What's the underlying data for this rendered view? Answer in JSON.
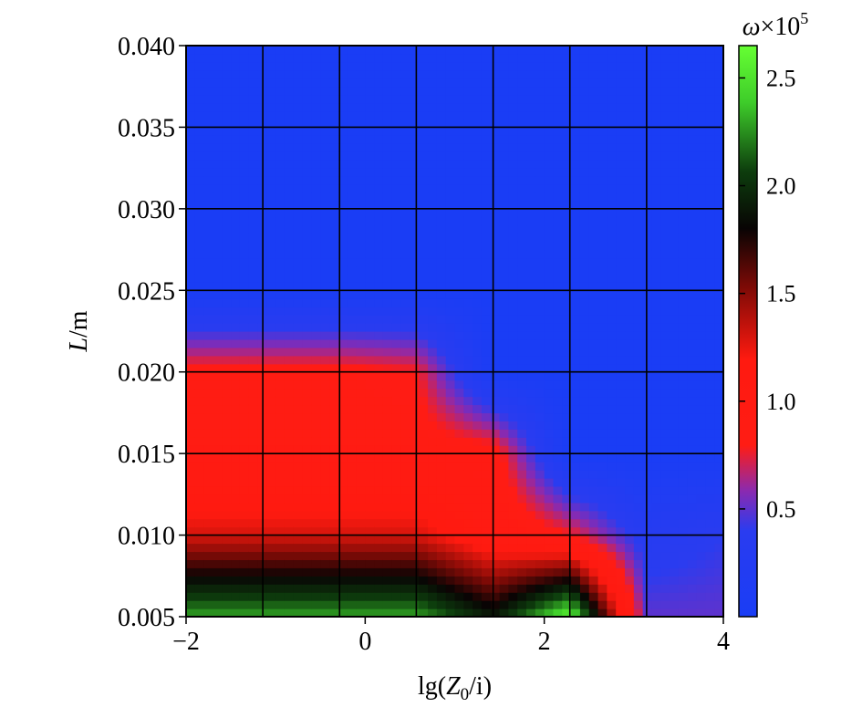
{
  "chart_data": {
    "type": "heatmap",
    "title": "",
    "xlabel_parts": {
      "pre": "lg(",
      "var": "Z",
      "sub": "0",
      "post": "/i)"
    },
    "ylabel_parts": {
      "var": "L",
      "post": "/m"
    },
    "xlim": [
      -2,
      4
    ],
    "ylim": [
      0.005,
      0.04
    ],
    "x_ticks": [
      -2,
      0,
      2,
      4
    ],
    "x_tick_labels": [
      "−2",
      "0",
      "2",
      "4"
    ],
    "y_ticks": [
      0.005,
      0.01,
      0.015,
      0.02,
      0.025,
      0.03,
      0.035,
      0.04
    ],
    "y_tick_labels": [
      "0.005",
      "0.010",
      "0.015",
      "0.020",
      "0.025",
      "0.030",
      "0.035",
      "0.040"
    ],
    "grid": true,
    "grid_x": [
      -2,
      -1.143,
      -0.286,
      0.571,
      1.429,
      2.286,
      3.143,
      4
    ],
    "grid_y": [
      0.005,
      0.01,
      0.015,
      0.02,
      0.025,
      0.03,
      0.035,
      0.04
    ],
    "colorbar": {
      "title_var": "ω",
      "title_mult": "×10",
      "title_exp": "5",
      "range": [
        0.0,
        2.65
      ],
      "ticks": [
        0.5,
        1.0,
        1.5,
        2.0,
        2.5
      ],
      "tick_labels": [
        "0.5",
        "1.0",
        "1.5",
        "2.0",
        "2.5"
      ],
      "colorscale": [
        [
          0.0,
          "#1a3df5"
        ],
        [
          0.15,
          "#2a3cf0"
        ],
        [
          0.22,
          "#8a2ab0"
        ],
        [
          0.3,
          "#ff1c14"
        ],
        [
          0.45,
          "#ff1a10"
        ],
        [
          0.58,
          "#7a0a06"
        ],
        [
          0.68,
          "#080404"
        ],
        [
          0.78,
          "#0d3d0d"
        ],
        [
          0.9,
          "#3ecc2a"
        ],
        [
          1.0,
          "#66ff33"
        ]
      ]
    },
    "x": [
      -2,
      -1.143,
      -0.286,
      0.571,
      1.429,
      2.286,
      3.143,
      4
    ],
    "y": [
      0.005,
      0.01,
      0.015,
      0.02,
      0.025,
      0.03,
      0.035,
      0.04
    ],
    "z": [
      [
        2.3,
        2.3,
        2.3,
        2.3,
        1.9,
        2.6,
        0.5,
        0.5
      ],
      [
        1.3,
        1.3,
        1.3,
        1.3,
        1.0,
        0.8,
        0.3,
        0.4
      ],
      [
        0.9,
        0.9,
        0.9,
        0.9,
        0.9,
        0.0,
        0.0,
        0.0
      ],
      [
        0.85,
        0.85,
        0.85,
        0.8,
        0.0,
        0.0,
        0.0,
        0.0
      ],
      [
        0.0,
        0.0,
        0.0,
        0.0,
        0.0,
        0.0,
        0.0,
        0.0
      ],
      [
        0.0,
        0.0,
        0.0,
        0.0,
        0.0,
        0.0,
        0.0,
        0.0
      ],
      [
        0.0,
        0.0,
        0.0,
        0.0,
        0.0,
        0.0,
        0.0,
        0.0
      ],
      [
        0.0,
        0.0,
        0.0,
        0.0,
        0.0,
        0.0,
        0.0,
        0.0
      ]
    ]
  }
}
